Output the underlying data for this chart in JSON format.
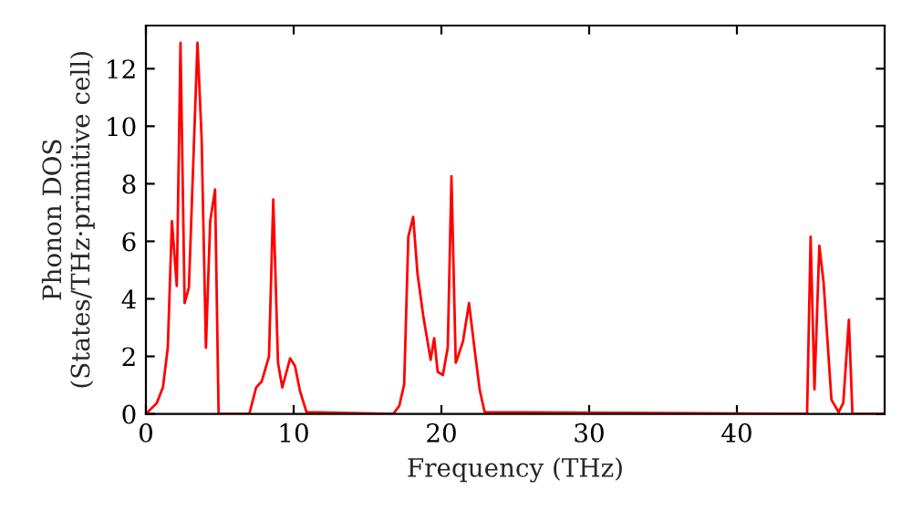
{
  "chart_data": {
    "type": "line",
    "xlabel": "Frequency (THz)",
    "ylabel": "Phonon DOS\n(States/THz·primitive cell)",
    "xlim": [
      0,
      50
    ],
    "ylim": [
      0,
      13.5
    ],
    "xticks": [
      0,
      10,
      20,
      30,
      40
    ],
    "yticks": [
      0,
      2,
      4,
      6,
      8,
      10,
      12
    ],
    "grid": false,
    "marker": "none",
    "line_style": "solid",
    "series": [
      {
        "color": "#ff0000",
        "x": [
          0,
          0.74,
          1.15,
          1.48,
          1.76,
          2.09,
          2.34,
          2.62,
          2.91,
          3.49,
          3.77,
          4.06,
          4.35,
          4.68,
          4.92,
          7.0,
          7.46,
          7.84,
          8.33,
          8.62,
          8.94,
          9.23,
          9.76,
          10.09,
          10.42,
          10.87,
          16.74,
          17.15,
          17.48,
          17.76,
          18.09,
          18.38,
          18.78,
          19.27,
          19.51,
          19.75,
          20.1,
          20.43,
          20.68,
          20.97,
          21.05,
          21.46,
          21.87,
          22.28,
          22.6,
          22.93,
          44.75,
          44.99,
          45.25,
          45.58,
          45.87,
          46.4,
          46.89,
          47.2,
          47.58,
          47.82,
          49.9
        ],
        "values": [
          0,
          0.38,
          0.92,
          2.3,
          6.7,
          4.45,
          12.9,
          3.85,
          4.4,
          12.9,
          9.6,
          2.3,
          6.7,
          7.8,
          0,
          0,
          0.92,
          1.13,
          2.0,
          7.45,
          1.78,
          0.92,
          1.93,
          1.67,
          0.81,
          0.06,
          0,
          0.28,
          1.03,
          6.16,
          6.85,
          4.88,
          3.38,
          1.88,
          2.63,
          1.46,
          1.35,
          2.3,
          8.26,
          1.78,
          1.88,
          2.52,
          3.85,
          2.1,
          0.81,
          0.06,
          0,
          6.16,
          0.85,
          5.84,
          4.56,
          0.49,
          0.06,
          0.38,
          3.27,
          0,
          0
        ]
      }
    ]
  }
}
